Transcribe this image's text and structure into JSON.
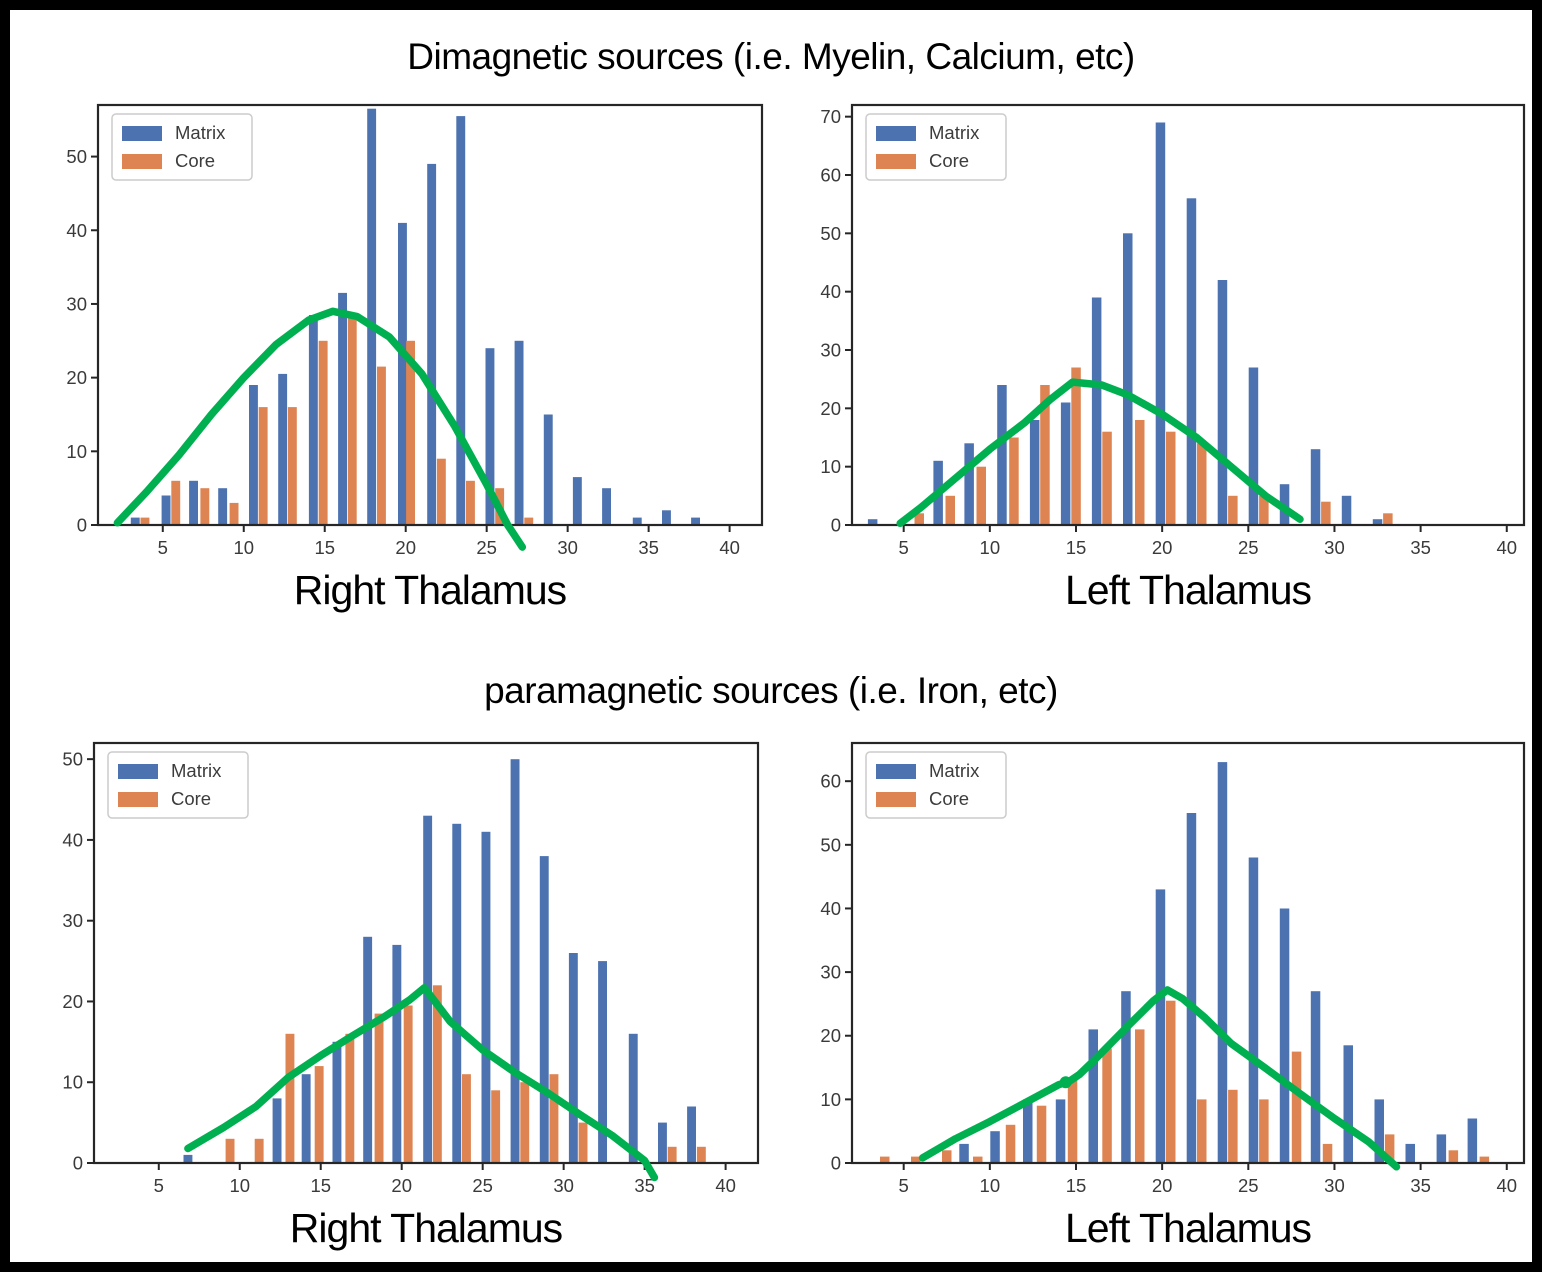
{
  "sections": [
    {
      "title": "Dimagnetic sources (i.e. Myelin, Calcium, etc)"
    },
    {
      "title": "paramagnetic sources (i.e. Iron, etc)"
    }
  ],
  "legend": {
    "labels": [
      "Matrix",
      "Core"
    ]
  },
  "colors": {
    "matrix": "#4C72B0",
    "core": "#DD8452",
    "curve": "#00B050",
    "spine": "#262626",
    "tick_label": "#3a3a3a",
    "legend_border": "#cccccc"
  },
  "chart_data": [
    {
      "type": "bar",
      "title": "Dimagnetic sources (i.e. Myelin, Calcium, etc)",
      "xlabel": "Right Thalamus",
      "ylabel": "",
      "xlim": [
        1,
        42
      ],
      "ylim": [
        0,
        57
      ],
      "xticks": [
        5,
        10,
        15,
        20,
        25,
        30,
        35,
        40
      ],
      "yticks": [
        0,
        10,
        20,
        30,
        40,
        50
      ],
      "bar_width": 0.55,
      "grid": false,
      "legend_position": "upper-left",
      "series": [
        {
          "name": "Matrix",
          "color": "#4C72B0",
          "points": [
            [
              3.3,
              1
            ],
            [
              5.2,
              4
            ],
            [
              6.9,
              6
            ],
            [
              8.7,
              5
            ],
            [
              10.6,
              19
            ],
            [
              12.4,
              20.5
            ],
            [
              14.3,
              28.5
            ],
            [
              16.1,
              31.5
            ],
            [
              17.9,
              56.5
            ],
            [
              19.8,
              41
            ],
            [
              21.6,
              49
            ],
            [
              23.4,
              55.5
            ],
            [
              25.2,
              24
            ],
            [
              27,
              25
            ],
            [
              28.8,
              15
            ],
            [
              30.6,
              6.5
            ],
            [
              32.4,
              5
            ],
            [
              34.3,
              1
            ],
            [
              36.1,
              2
            ],
            [
              37.9,
              1
            ]
          ]
        },
        {
          "name": "Core",
          "color": "#DD8452",
          "points": [
            [
              3.9,
              1
            ],
            [
              5.8,
              6
            ],
            [
              7.6,
              5
            ],
            [
              9.4,
              3
            ],
            [
              11.2,
              16
            ],
            [
              13,
              16
            ],
            [
              14.9,
              25
            ],
            [
              16.7,
              28.5
            ],
            [
              18.5,
              21.5
            ],
            [
              20.3,
              25
            ],
            [
              22.2,
              9
            ],
            [
              24,
              6
            ],
            [
              25.8,
              5
            ],
            [
              27.6,
              1
            ]
          ]
        }
      ],
      "curve": {
        "color": "#00B050",
        "points": [
          [
            2.2,
            0.3
          ],
          [
            4,
            4.5
          ],
          [
            6,
            9.5
          ],
          [
            8,
            15
          ],
          [
            10,
            20
          ],
          [
            12,
            24.5
          ],
          [
            14,
            27.8
          ],
          [
            15.5,
            29
          ],
          [
            17,
            28.3
          ],
          [
            19,
            25.5
          ],
          [
            21,
            20.5
          ],
          [
            23,
            13.5
          ],
          [
            25,
            5.5
          ],
          [
            26.3,
            0
          ],
          [
            27.2,
            -3
          ]
        ]
      }
    },
    {
      "type": "bar",
      "title": "Dimagnetic sources (i.e. Myelin, Calcium, etc)",
      "xlabel": "Left Thalamus",
      "ylabel": "",
      "xlim": [
        2,
        41
      ],
      "ylim": [
        0,
        72
      ],
      "xticks": [
        5,
        10,
        15,
        20,
        25,
        30,
        35,
        40
      ],
      "yticks": [
        0,
        10,
        20,
        30,
        40,
        50,
        60,
        70
      ],
      "bar_width": 0.55,
      "grid": false,
      "legend_position": "upper-left",
      "series": [
        {
          "name": "Matrix",
          "color": "#4C72B0",
          "points": [
            [
              3.2,
              1
            ],
            [
              7,
              11
            ],
            [
              8.8,
              14
            ],
            [
              10.7,
              24
            ],
            [
              12.6,
              18
            ],
            [
              14.4,
              21
            ],
            [
              16.2,
              39
            ],
            [
              18,
              50
            ],
            [
              19.9,
              69
            ],
            [
              21.7,
              56
            ],
            [
              23.5,
              42
            ],
            [
              25.3,
              27
            ],
            [
              27.1,
              7
            ],
            [
              28.9,
              13
            ],
            [
              30.7,
              5
            ],
            [
              32.5,
              1
            ]
          ]
        },
        {
          "name": "Core",
          "color": "#DD8452",
          "points": [
            [
              5.9,
              2
            ],
            [
              7.7,
              5
            ],
            [
              9.5,
              10
            ],
            [
              11.4,
              15
            ],
            [
              13.2,
              24
            ],
            [
              15,
              27
            ],
            [
              16.8,
              16
            ],
            [
              18.7,
              18
            ],
            [
              20.5,
              16
            ],
            [
              22.3,
              14
            ],
            [
              24.1,
              5
            ],
            [
              25.9,
              5
            ],
            [
              29.5,
              4
            ],
            [
              33.1,
              2
            ]
          ]
        }
      ],
      "curve": {
        "color": "#00B050",
        "points": [
          [
            4.8,
            0.3
          ],
          [
            6,
            3
          ],
          [
            8,
            8
          ],
          [
            10,
            13
          ],
          [
            12,
            17.5
          ],
          [
            13.5,
            21.5
          ],
          [
            14.8,
            24.5
          ],
          [
            16.5,
            24
          ],
          [
            18,
            22.3
          ],
          [
            20,
            19
          ],
          [
            22,
            15
          ],
          [
            24,
            10
          ],
          [
            26,
            5
          ],
          [
            28,
            1
          ]
        ]
      }
    },
    {
      "type": "bar",
      "title": "paramagnetic sources (i.e. Iron, etc)",
      "xlabel": "Right Thalamus",
      "ylabel": "",
      "xlim": [
        1,
        42
      ],
      "ylim": [
        0,
        52
      ],
      "xticks": [
        5,
        10,
        15,
        20,
        25,
        30,
        35,
        40
      ],
      "yticks": [
        0,
        10,
        20,
        30,
        40,
        50
      ],
      "bar_width": 0.55,
      "grid": false,
      "legend_position": "upper-left",
      "series": [
        {
          "name": "Matrix",
          "color": "#4C72B0",
          "points": [
            [
              6.8,
              1
            ],
            [
              12.3,
              8
            ],
            [
              14.1,
              11
            ],
            [
              16,
              15
            ],
            [
              17.9,
              28
            ],
            [
              19.7,
              27
            ],
            [
              21.6,
              43
            ],
            [
              23.4,
              42
            ],
            [
              25.2,
              41
            ],
            [
              27,
              50
            ],
            [
              28.8,
              38
            ],
            [
              30.6,
              26
            ],
            [
              32.4,
              25
            ],
            [
              34.3,
              16
            ],
            [
              36.1,
              5
            ],
            [
              37.9,
              7
            ]
          ]
        },
        {
          "name": "Core",
          "color": "#DD8452",
          "points": [
            [
              9.4,
              3
            ],
            [
              11.2,
              3
            ],
            [
              13.1,
              16
            ],
            [
              14.9,
              12
            ],
            [
              16.8,
              16
            ],
            [
              18.6,
              18.5
            ],
            [
              20.4,
              19.5
            ],
            [
              22.2,
              22
            ],
            [
              24,
              11
            ],
            [
              25.8,
              9
            ],
            [
              27.6,
              10
            ],
            [
              29.4,
              11
            ],
            [
              31.2,
              5
            ],
            [
              36.7,
              2
            ],
            [
              38.5,
              2
            ]
          ]
        }
      ],
      "curve": {
        "color": "#00B050",
        "points": [
          [
            6.8,
            1.8
          ],
          [
            9,
            4.4
          ],
          [
            11,
            7
          ],
          [
            13,
            10.6
          ],
          [
            15,
            13.3
          ],
          [
            17,
            15.8
          ],
          [
            19,
            18.2
          ],
          [
            20.5,
            20.2
          ],
          [
            21.4,
            21.7
          ],
          [
            23,
            17.5
          ],
          [
            25,
            14
          ],
          [
            27,
            11.2
          ],
          [
            29,
            8.7
          ],
          [
            31,
            6
          ],
          [
            33,
            3.4
          ],
          [
            35,
            0.3
          ],
          [
            35.6,
            -1.8
          ]
        ]
      }
    },
    {
      "type": "bar",
      "title": "paramagnetic sources (i.e. Iron, etc)",
      "xlabel": "Left Thalamus",
      "ylabel": "",
      "xlim": [
        2,
        41
      ],
      "ylim": [
        0,
        66
      ],
      "xticks": [
        5,
        10,
        15,
        20,
        25,
        30,
        35,
        40
      ],
      "yticks": [
        0,
        10,
        20,
        30,
        40,
        50,
        60
      ],
      "bar_width": 0.55,
      "grid": false,
      "legend_position": "upper-left",
      "series": [
        {
          "name": "Matrix",
          "color": "#4C72B0",
          "points": [
            [
              8.5,
              3
            ],
            [
              10.3,
              5
            ],
            [
              12.2,
              10
            ],
            [
              14.1,
              10
            ],
            [
              16,
              21
            ],
            [
              17.9,
              27
            ],
            [
              19.9,
              43
            ],
            [
              21.7,
              55
            ],
            [
              23.5,
              63
            ],
            [
              25.3,
              48
            ],
            [
              27.1,
              40
            ],
            [
              28.9,
              27
            ],
            [
              30.8,
              18.5
            ],
            [
              32.6,
              10
            ],
            [
              34.4,
              3
            ],
            [
              36.2,
              4.5
            ],
            [
              38,
              7
            ]
          ]
        },
        {
          "name": "Core",
          "color": "#DD8452",
          "points": [
            [
              3.9,
              1
            ],
            [
              5.7,
              1
            ],
            [
              7.5,
              2
            ],
            [
              9.3,
              1
            ],
            [
              11.2,
              6
            ],
            [
              13,
              9
            ],
            [
              14.8,
              13.5
            ],
            [
              16.8,
              18
            ],
            [
              18.7,
              21
            ],
            [
              20.5,
              25.5
            ],
            [
              22.3,
              10
            ],
            [
              24.1,
              11.5
            ],
            [
              25.9,
              10
            ],
            [
              27.8,
              17.5
            ],
            [
              29.6,
              3
            ],
            [
              33.2,
              4.5
            ],
            [
              36.9,
              2
            ],
            [
              38.7,
              1
            ]
          ]
        }
      ],
      "curve": {
        "color": "#00B050",
        "points": [
          [
            6.1,
            0.8
          ],
          [
            8,
            3.8
          ],
          [
            10,
            6.5
          ],
          [
            12,
            9.4
          ],
          [
            14,
            12.3
          ],
          [
            14.6,
            12.8
          ],
          [
            15.2,
            13.9
          ],
          [
            16,
            16
          ],
          [
            18,
            21.5
          ],
          [
            19.5,
            25.5
          ],
          [
            20.3,
            27.2
          ],
          [
            21.2,
            25.8
          ],
          [
            22.5,
            22.8
          ],
          [
            24,
            18.8
          ],
          [
            26,
            14.9
          ],
          [
            28,
            10.9
          ],
          [
            30,
            7
          ],
          [
            32,
            3.3
          ],
          [
            33.6,
            -0.6
          ]
        ],
        "notch": [
          14.4,
          12.7
        ]
      }
    }
  ]
}
